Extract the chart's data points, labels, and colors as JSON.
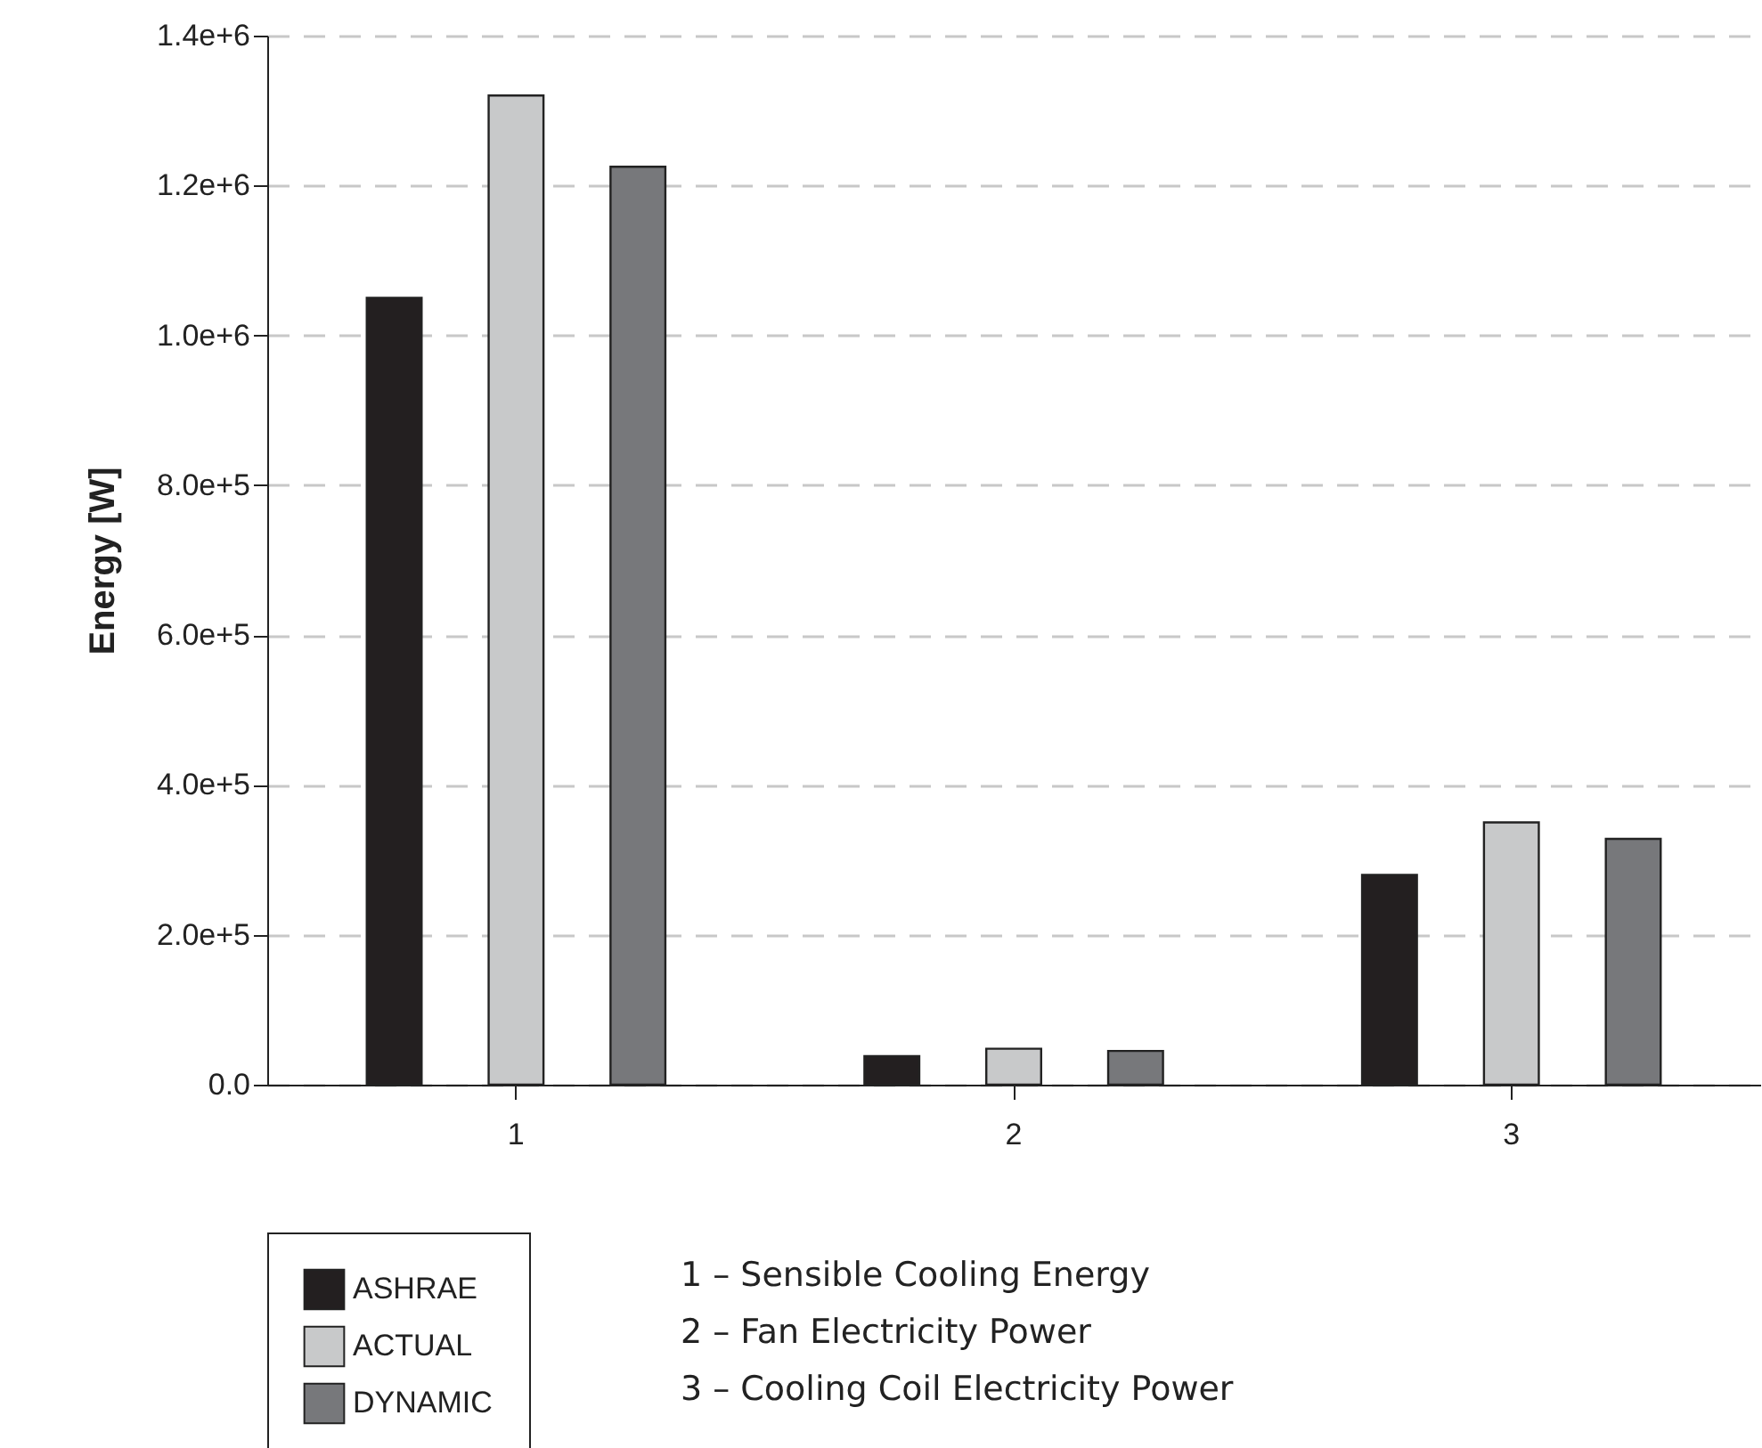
{
  "chart_data": {
    "type": "bar",
    "ylabel": "Energy [W]",
    "categories": [
      "1",
      "2",
      "3"
    ],
    "series": [
      {
        "name": "ASHRAE",
        "color": "#231f20",
        "values": [
          1050000,
          38000,
          280000
        ]
      },
      {
        "name": "ACTUAL",
        "color": "#c8c9ca",
        "values": [
          1320000,
          48000,
          350000
        ]
      },
      {
        "name": "DYNAMIC",
        "color": "#77787b",
        "values": [
          1225000,
          45000,
          328000
        ]
      }
    ],
    "ylim": [
      0,
      1400000
    ],
    "yticks": [
      {
        "value": 0,
        "label": "0.0"
      },
      {
        "value": 200000,
        "label": "2.0e+5"
      },
      {
        "value": 400000,
        "label": "4.0e+5"
      },
      {
        "value": 600000,
        "label": "6.0e+5"
      },
      {
        "value": 800000,
        "label": "8.0e+5"
      },
      {
        "value": 1000000,
        "label": "1.0e+6"
      },
      {
        "value": 1200000,
        "label": "1.2e+6"
      },
      {
        "value": 1400000,
        "label": "1.4e+6"
      }
    ],
    "grid": "y",
    "legend": "bottom left",
    "annotations": [
      "1 – Sensible Cooling Energy",
      "2 – Fan Electricity Power",
      "3 – Cooling Coil Electricity Power"
    ]
  }
}
